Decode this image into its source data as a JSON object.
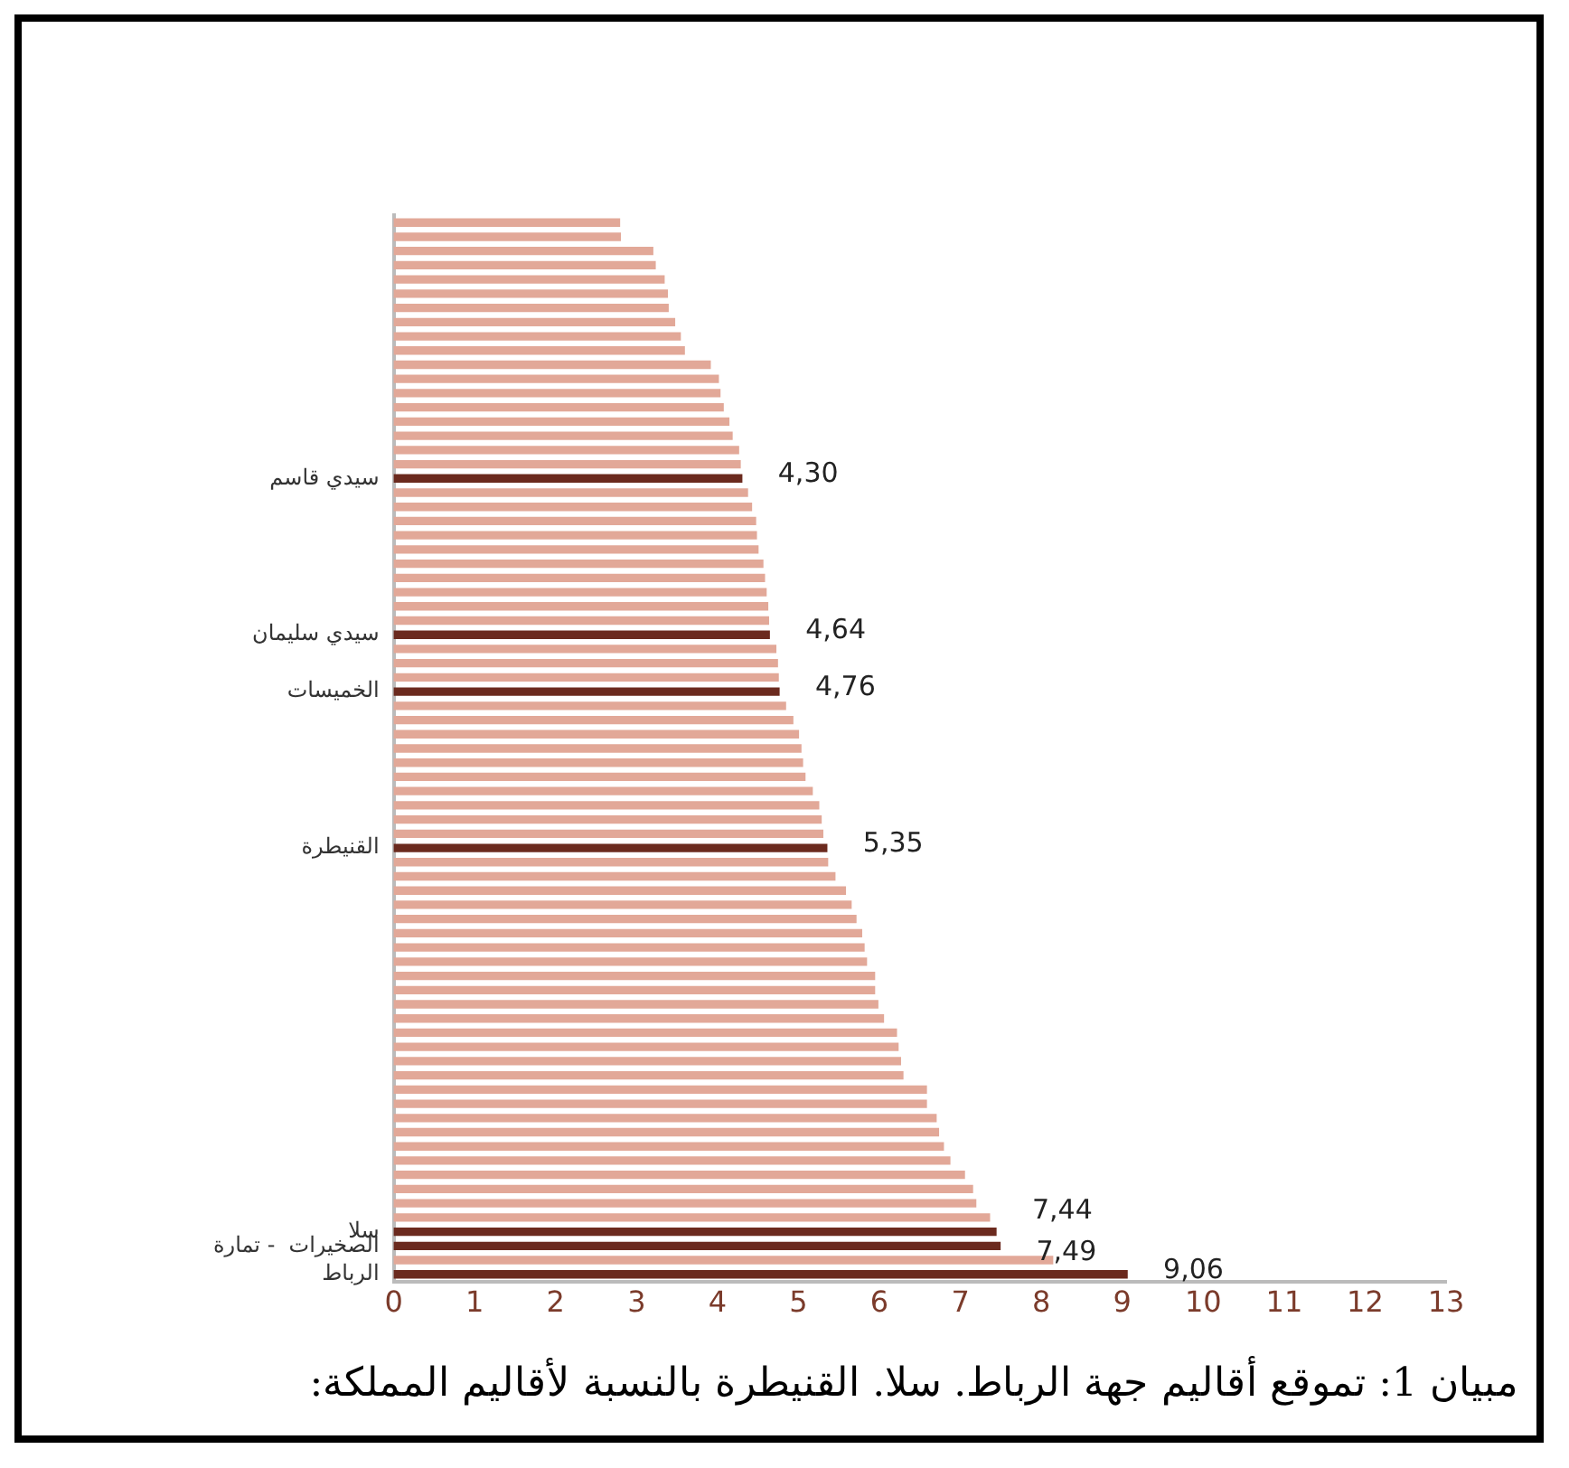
{
  "chart_data": {
    "type": "bar",
    "orientation": "horizontal",
    "title": "مبيان 1: تموقع أقاليم جهة الرباط. سلا. القنيطرة   بالنسبة لأقاليم المملكة:",
    "categories": [
      null,
      null,
      null,
      null,
      null,
      null,
      null,
      null,
      null,
      null,
      null,
      null,
      null,
      null,
      null,
      null,
      null,
      null,
      "سيدي قاسم",
      null,
      null,
      null,
      null,
      null,
      null,
      null,
      null,
      null,
      null,
      "سيدي سليمان",
      null,
      null,
      null,
      "الخميسات",
      null,
      null,
      null,
      null,
      null,
      null,
      null,
      null,
      null,
      null,
      "القنيطرة",
      null,
      null,
      null,
      null,
      null,
      null,
      null,
      null,
      null,
      null,
      null,
      null,
      null,
      null,
      null,
      null,
      null,
      null,
      null,
      null,
      null,
      null,
      null,
      null,
      null,
      null,
      "سلا",
      "الصخيرات  - تمارة",
      null,
      "الرباط"
    ],
    "values": [
      2.79,
      2.8,
      3.2,
      3.23,
      3.34,
      3.38,
      3.39,
      3.47,
      3.54,
      3.59,
      3.91,
      4.01,
      4.03,
      4.07,
      4.14,
      4.18,
      4.26,
      4.28,
      4.3,
      4.37,
      4.42,
      4.47,
      4.48,
      4.5,
      4.56,
      4.58,
      4.6,
      4.62,
      4.63,
      4.64,
      4.72,
      4.74,
      4.75,
      4.76,
      4.84,
      4.93,
      5.0,
      5.03,
      5.05,
      5.08,
      5.17,
      5.25,
      5.28,
      5.3,
      5.35,
      5.36,
      5.45,
      5.58,
      5.65,
      5.71,
      5.78,
      5.81,
      5.84,
      5.94,
      5.94,
      5.98,
      6.05,
      6.21,
      6.23,
      6.26,
      6.29,
      6.58,
      6.58,
      6.7,
      6.73,
      6.79,
      6.87,
      7.05,
      7.15,
      7.19,
      7.36,
      7.44,
      7.49,
      8.14,
      9.06
    ],
    "colors": [
      "#e2a898",
      "#e2a898",
      "#e2a898",
      "#e2a898",
      "#e2a898",
      "#e2a898",
      "#e2a898",
      "#e2a898",
      "#e2a898",
      "#e2a898",
      "#e2a898",
      "#e2a898",
      "#e2a898",
      "#e2a898",
      "#e2a898",
      "#e2a898",
      "#e2a898",
      "#e2a898",
      "#6b2a1e",
      "#e2a898",
      "#e2a898",
      "#e2a898",
      "#e2a898",
      "#e2a898",
      "#e2a898",
      "#e2a898",
      "#e2a898",
      "#e2a898",
      "#e2a898",
      "#6b2a1e",
      "#e2a898",
      "#e2a898",
      "#e2a898",
      "#6b2a1e",
      "#e2a898",
      "#e2a898",
      "#e2a898",
      "#e2a898",
      "#e2a898",
      "#e2a898",
      "#e2a898",
      "#e2a898",
      "#e2a898",
      "#e2a898",
      "#6b2a1e",
      "#e2a898",
      "#e2a898",
      "#e2a898",
      "#e2a898",
      "#e2a898",
      "#e2a898",
      "#e2a898",
      "#e2a898",
      "#e2a898",
      "#e2a898",
      "#e2a898",
      "#e2a898",
      "#e2a898",
      "#e2a898",
      "#e2a898",
      "#e2a898",
      "#e2a898",
      "#e2a898",
      "#e2a898",
      "#e2a898",
      "#e2a898",
      "#e2a898",
      "#e2a898",
      "#e2a898",
      "#e2a898",
      "#e2a898",
      "#6b2a1e",
      "#6b2a1e",
      "#e2a898",
      "#6b2a1e"
    ],
    "value_labels": [
      null,
      null,
      null,
      null,
      null,
      null,
      null,
      null,
      null,
      null,
      null,
      null,
      null,
      null,
      null,
      null,
      null,
      null,
      "4,30",
      null,
      null,
      null,
      null,
      null,
      null,
      null,
      null,
      null,
      null,
      "4,64",
      null,
      null,
      null,
      "4,76",
      null,
      null,
      null,
      null,
      null,
      null,
      null,
      null,
      null,
      null,
      "5,35",
      null,
      null,
      null,
      null,
      null,
      null,
      null,
      null,
      null,
      null,
      null,
      null,
      null,
      null,
      null,
      null,
      null,
      null,
      null,
      null,
      null,
      null,
      null,
      null,
      null,
      null,
      "7,44",
      "7,49",
      null,
      "9,06"
    ],
    "xlim": [
      0,
      13
    ],
    "xticks": [
      0,
      1,
      2,
      3,
      4,
      5,
      6,
      7,
      8,
      9,
      10,
      11,
      12,
      13
    ],
    "grid": false,
    "legend": false
  }
}
